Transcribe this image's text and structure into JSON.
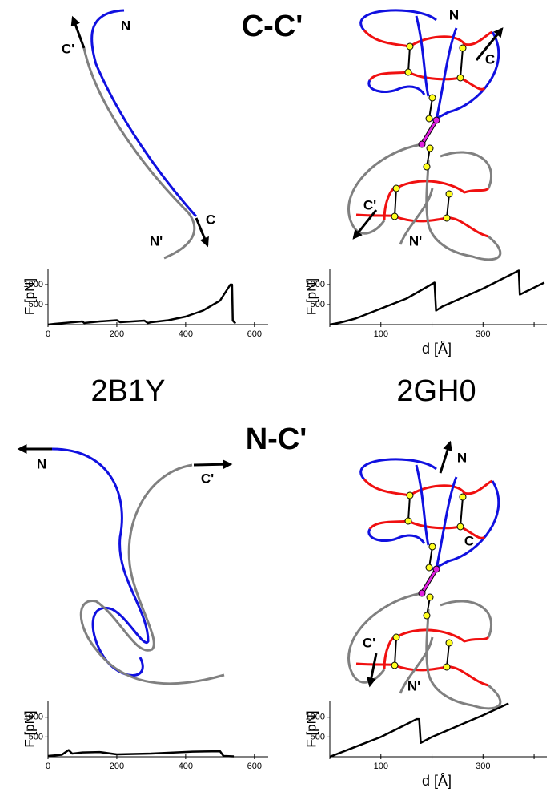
{
  "figure": {
    "rows": [
      "C-C'",
      "N-C'"
    ],
    "proteins": [
      "2B1Y",
      "2GH0"
    ],
    "diagrams": [
      {
        "labels": [
          "N",
          "C'",
          "C",
          "N'"
        ]
      },
      {
        "labels": [
          "N",
          "C",
          "C'",
          "N'"
        ]
      },
      {
        "labels": [
          "N",
          "C'"
        ]
      },
      {
        "labels": [
          "N",
          "C",
          "C'",
          "N'"
        ]
      }
    ]
  },
  "chart_data": [
    {
      "type": "line",
      "color": "#000000",
      "ylabel": "F [pN]",
      "x": [
        0,
        20,
        60,
        100,
        105,
        150,
        200,
        210,
        280,
        290,
        300,
        350,
        400,
        450,
        500,
        530,
        535,
        537,
        545
      ],
      "values": [
        0,
        20,
        50,
        80,
        40,
        80,
        110,
        60,
        100,
        40,
        60,
        110,
        200,
        350,
        600,
        1000,
        1000,
        100,
        30
      ],
      "xlim": [
        0,
        640
      ],
      "ylim": [
        0,
        1400
      ],
      "xticks": [
        0,
        200,
        400,
        600
      ],
      "yticks": [
        500,
        1000
      ]
    },
    {
      "type": "line",
      "color": "#000000",
      "ylabel": "F [pN]",
      "xlabel": "d [Å]",
      "x": [
        0,
        20,
        50,
        100,
        150,
        205,
        208,
        220,
        300,
        370,
        372,
        420
      ],
      "values": [
        0,
        50,
        150,
        400,
        650,
        1050,
        350,
        450,
        900,
        1350,
        750,
        1050
      ],
      "xlim": [
        0,
        425
      ],
      "ylim": [
        0,
        1400
      ],
      "xticks": [
        100,
        300
      ],
      "xminor": [
        0,
        200,
        400
      ],
      "yticks": [
        500,
        1000
      ]
    },
    {
      "type": "line",
      "color": "#000000",
      "ylabel": "F [pN]",
      "x": [
        0,
        40,
        60,
        70,
        100,
        150,
        200,
        300,
        420,
        500,
        510,
        540
      ],
      "values": [
        20,
        50,
        170,
        80,
        110,
        120,
        60,
        80,
        130,
        140,
        20,
        10
      ],
      "xlim": [
        0,
        640
      ],
      "ylim": [
        0,
        1400
      ],
      "xticks": [
        0,
        200,
        400,
        600
      ],
      "yticks": [
        500,
        1000
      ]
    },
    {
      "type": "line",
      "color": "#000000",
      "ylabel": "F [pN]",
      "xlabel": "d [Å]",
      "x": [
        0,
        50,
        100,
        170,
        175,
        178,
        200,
        300,
        350
      ],
      "values": [
        0,
        250,
        500,
        950,
        950,
        350,
        500,
        1050,
        1350
      ],
      "xlim": [
        0,
        425
      ],
      "ylim": [
        0,
        1400
      ],
      "xticks": [
        100,
        300
      ],
      "xminor": [
        0,
        200,
        400
      ],
      "yticks": [
        500,
        1000
      ]
    }
  ]
}
